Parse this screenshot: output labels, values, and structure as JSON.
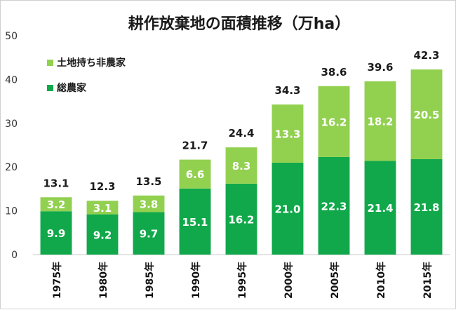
{
  "chart_data": {
    "type": "bar",
    "stacked": true,
    "title": "耕作放棄地の面積推移（万ha）",
    "categories": [
      "1975年",
      "1980年",
      "1985年",
      "1990年",
      "1995年",
      "2000年",
      "2005年",
      "2010年",
      "2015年"
    ],
    "series": [
      {
        "name": "総農家",
        "color": "#10a84a",
        "values": [
          9.9,
          9.2,
          9.7,
          15.1,
          16.2,
          21.0,
          22.3,
          21.4,
          21.8
        ]
      },
      {
        "name": "土地持ち非農家",
        "color": "#92d050",
        "values": [
          3.2,
          3.1,
          3.8,
          6.6,
          8.3,
          13.3,
          16.2,
          18.2,
          20.5
        ]
      }
    ],
    "totals": [
      13.1,
      12.3,
      13.5,
      21.7,
      24.4,
      34.3,
      38.6,
      39.6,
      42.3
    ],
    "ylim": [
      0,
      50
    ],
    "yticks": [
      0,
      10,
      20,
      30,
      40,
      50
    ],
    "grid": false,
    "legend_position": "top-left"
  }
}
